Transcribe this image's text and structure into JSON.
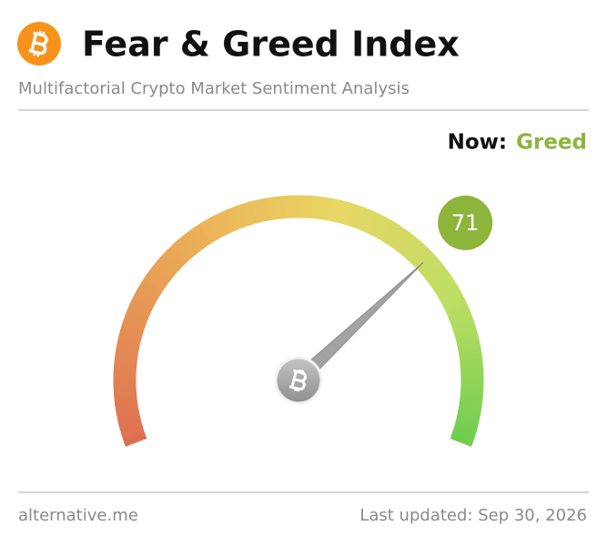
{
  "chart_data": {
    "type": "gauge",
    "title": "Fear & Greed Index",
    "subtitle": "Multifactorial Crypto Market Sentiment Analysis",
    "now_label": "Now:",
    "classification": "Greed",
    "value": 71,
    "ylim": [
      0,
      100
    ],
    "color": "#8db53c",
    "source": "alternative.me",
    "updated": "Last updated: Sep 30, 2026"
  }
}
